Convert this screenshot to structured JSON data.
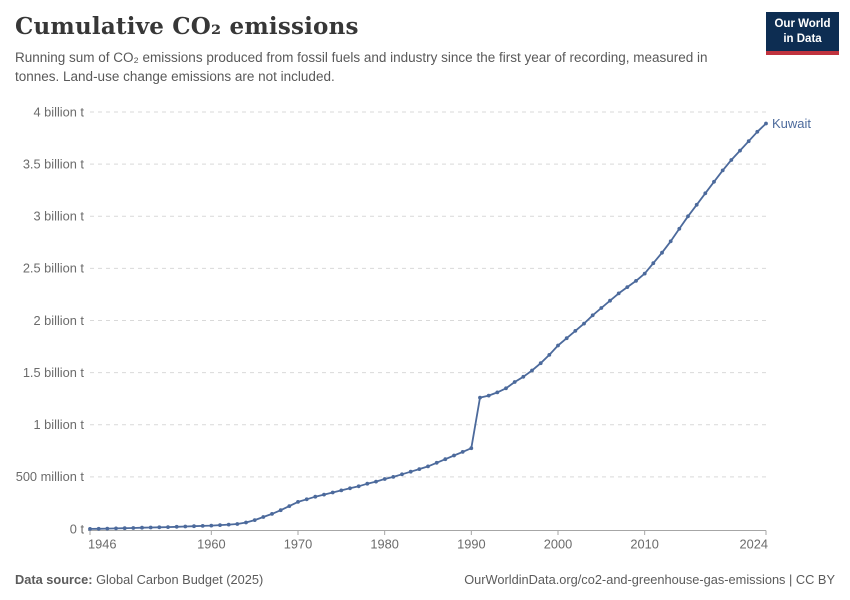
{
  "header": {
    "title": "Cumulative CO₂ emissions",
    "subtitle": "Running sum of CO₂ emissions produced from fossil fuels and industry since the first year of recording, measured in tonnes. Land-use change emissions are not included."
  },
  "logo": {
    "line1": "Our World",
    "line2": "in Data",
    "bg_color": "#0d2d52",
    "accent_color": "#c0333e"
  },
  "chart_data": {
    "type": "line",
    "title": "Cumulative CO₂ emissions",
    "unit": "tonnes",
    "xlim": [
      1946,
      2024
    ],
    "ylim": [
      0,
      4
    ],
    "ylim_unit": "billion tonnes",
    "grid": "dashed-horizontal",
    "legend": "end-of-line-label",
    "y_tick_values": [
      0,
      0.5,
      1,
      1.5,
      2,
      2.5,
      3,
      3.5,
      4
    ],
    "y_tick_labels": [
      "0 t",
      "500 million t",
      "1 billion t",
      "1.5 billion t",
      "2 billion t",
      "2.5 billion t",
      "3 billion t",
      "3.5 billion t",
      "4 billion t"
    ],
    "x_tick_values": [
      1946,
      1960,
      1970,
      1980,
      1990,
      2000,
      2010,
      2024
    ],
    "x_tick_labels": [
      "1946",
      "1960",
      "1970",
      "1980",
      "1990",
      "2000",
      "2010",
      "2024"
    ],
    "series": [
      {
        "name": "Kuwait",
        "color": "#4c6a9c",
        "years": [
          1946,
          1947,
          1948,
          1949,
          1950,
          1951,
          1952,
          1953,
          1954,
          1955,
          1956,
          1957,
          1958,
          1959,
          1960,
          1961,
          1962,
          1963,
          1964,
          1965,
          1966,
          1967,
          1968,
          1969,
          1970,
          1971,
          1972,
          1973,
          1974,
          1975,
          1976,
          1977,
          1978,
          1979,
          1980,
          1981,
          1982,
          1983,
          1984,
          1985,
          1986,
          1987,
          1988,
          1989,
          1990,
          1991,
          1992,
          1993,
          1994,
          1995,
          1996,
          1997,
          1998,
          1999,
          2000,
          2001,
          2002,
          2003,
          2004,
          2005,
          2006,
          2007,
          2008,
          2009,
          2010,
          2011,
          2012,
          2013,
          2014,
          2015,
          2016,
          2017,
          2018,
          2019,
          2020,
          2021,
          2022,
          2023,
          2024
        ],
        "values_billion_t": [
          0.001,
          0.002,
          0.004,
          0.006,
          0.008,
          0.01,
          0.012,
          0.014,
          0.016,
          0.018,
          0.021,
          0.024,
          0.027,
          0.03,
          0.033,
          0.037,
          0.042,
          0.048,
          0.062,
          0.085,
          0.115,
          0.145,
          0.18,
          0.22,
          0.26,
          0.285,
          0.31,
          0.33,
          0.35,
          0.37,
          0.39,
          0.41,
          0.435,
          0.455,
          0.48,
          0.5,
          0.525,
          0.55,
          0.575,
          0.6,
          0.635,
          0.67,
          0.705,
          0.74,
          0.775,
          1.26,
          1.28,
          1.31,
          1.35,
          1.41,
          1.46,
          1.52,
          1.59,
          1.67,
          1.76,
          1.83,
          1.9,
          1.97,
          2.05,
          2.12,
          2.19,
          2.26,
          2.32,
          2.38,
          2.45,
          2.55,
          2.65,
          2.76,
          2.88,
          3.0,
          3.11,
          3.22,
          3.33,
          3.44,
          3.54,
          3.63,
          3.72,
          3.81,
          3.89
        ]
      }
    ]
  },
  "footer": {
    "data_source_label": "Data source:",
    "data_source_value": " Global Carbon Budget (2025)",
    "url_text": "OurWorldinData.org/co2-and-greenhouse-gas-emissions",
    "license_suffix": " | CC BY"
  }
}
